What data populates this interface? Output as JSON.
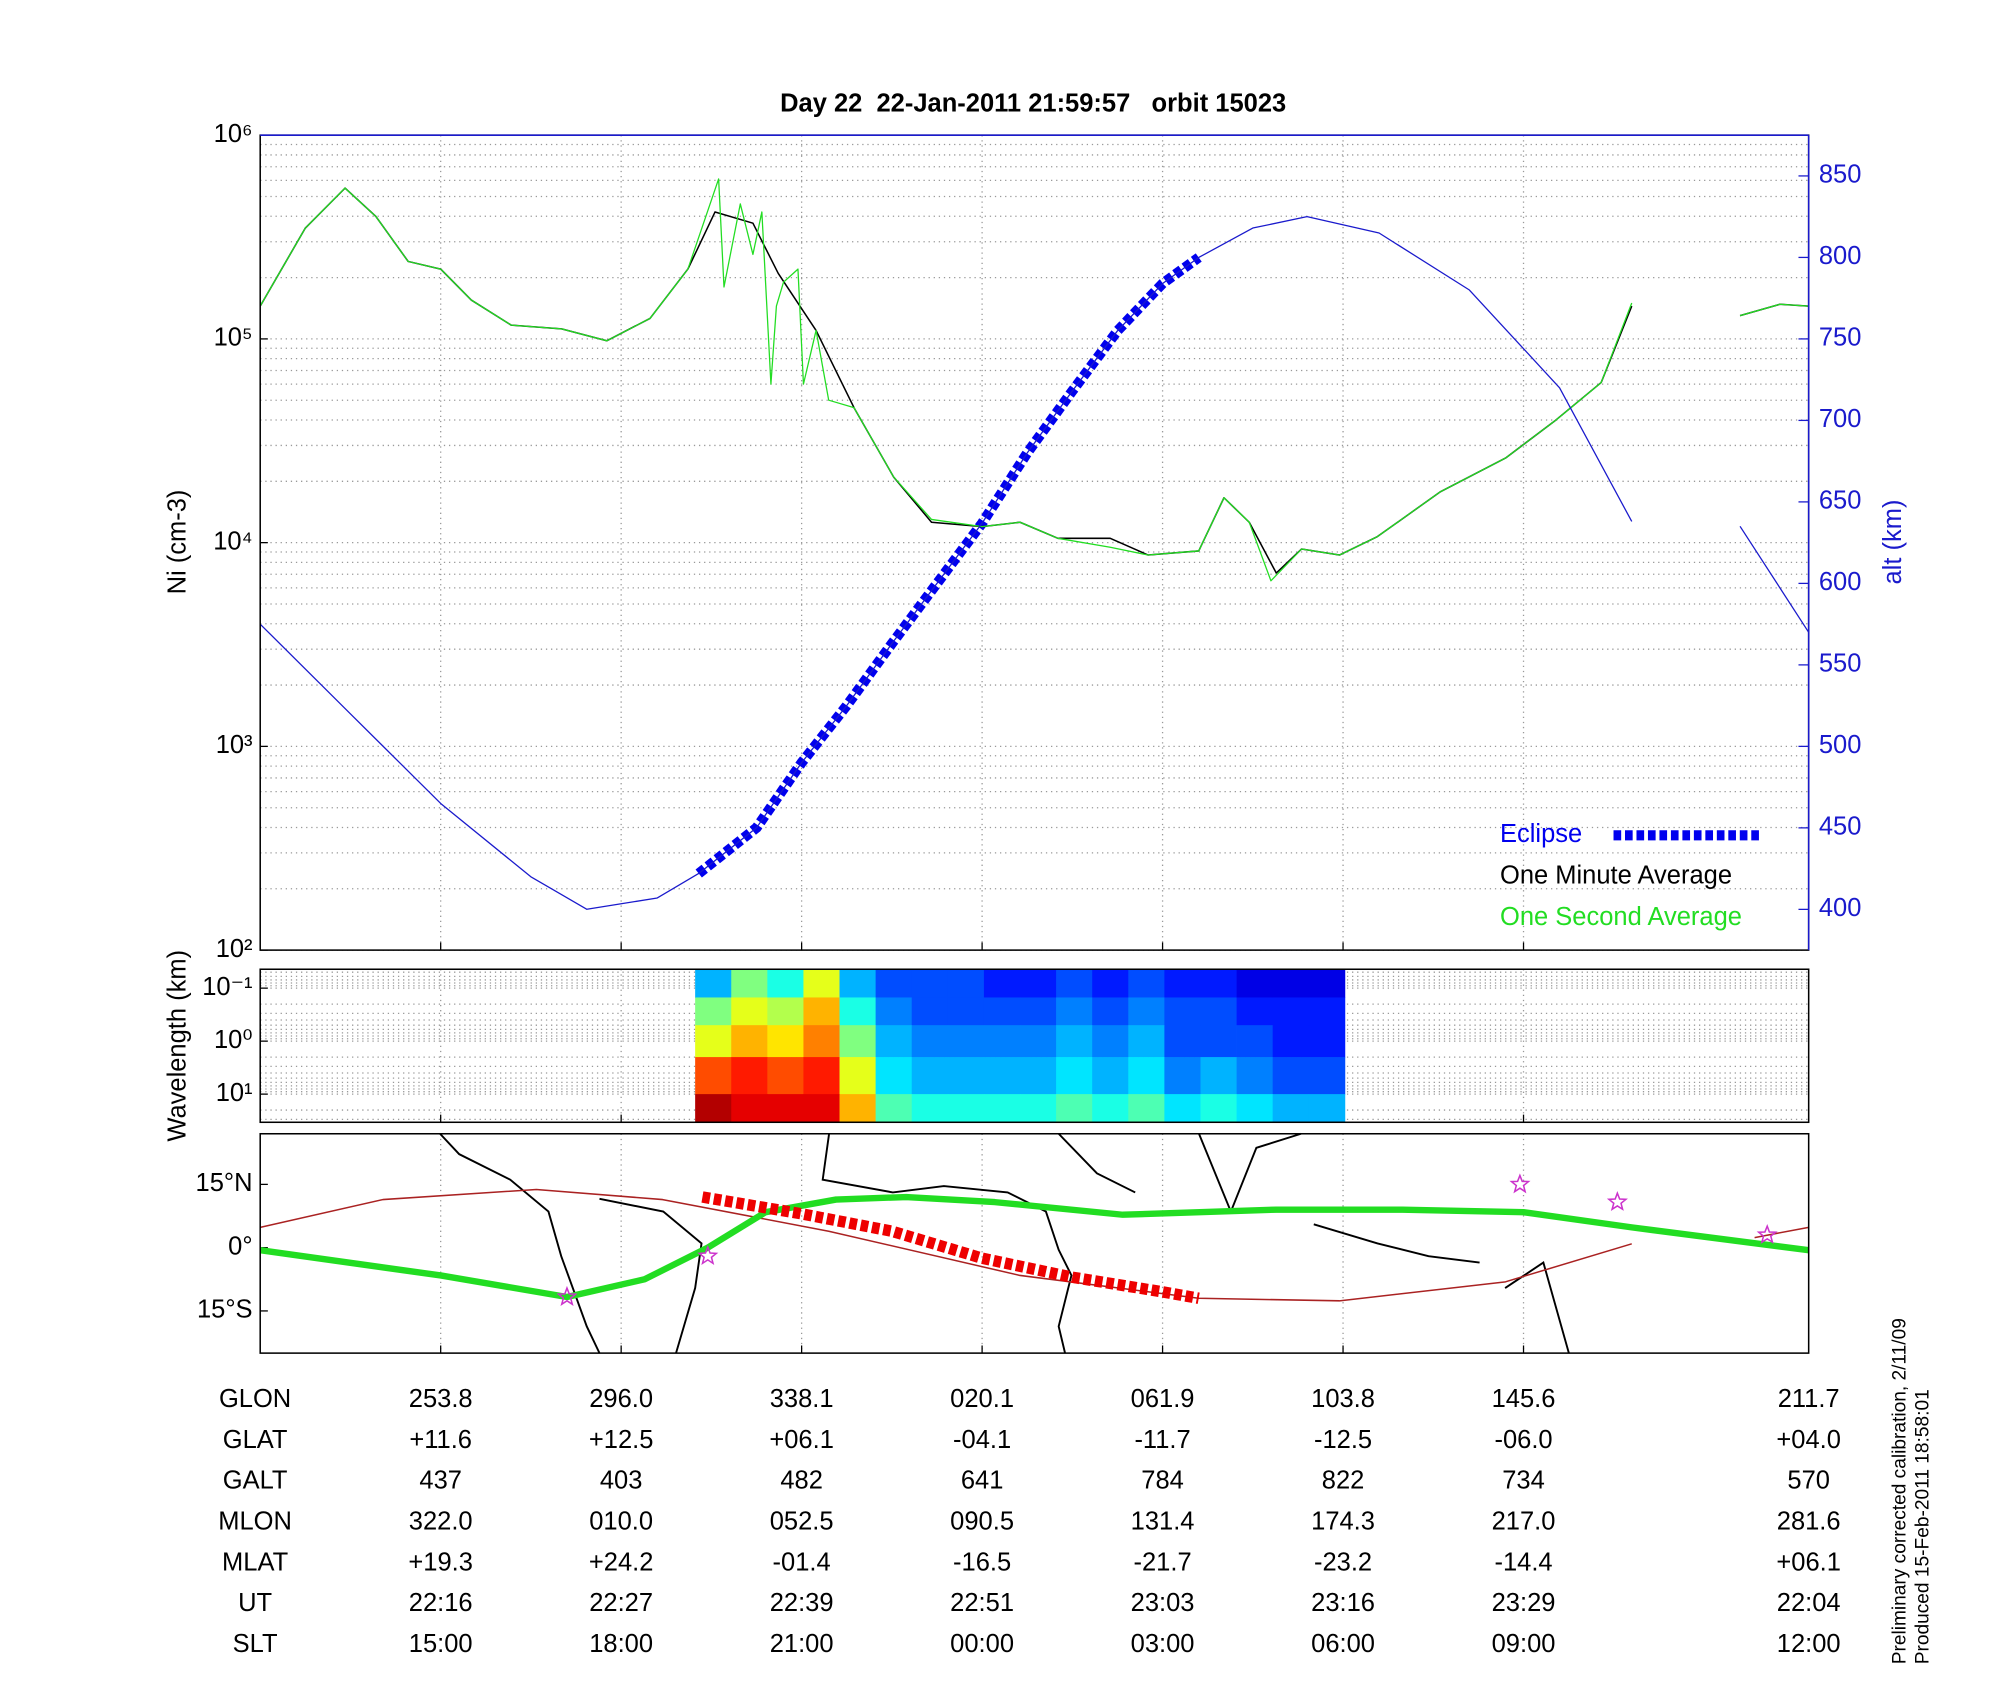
{
  "chart_data": [
    {
      "type": "line",
      "title": "Day 22  22-Jan-2011 21:59:57   orbit 15023",
      "ylabel": "Ni (cm-3)",
      "y2label": "alt (km)",
      "xlim": [
        0,
        8.58
      ],
      "xticks": [
        1,
        2,
        3,
        4,
        5,
        6,
        7
      ],
      "ylim": [
        100,
        1000000
      ],
      "ylog": true,
      "minor_grid": true,
      "grid": "both",
      "yticks": [
        {
          "value": 100,
          "label": "10²"
        },
        {
          "value": 1000,
          "label": "10³"
        },
        {
          "value": 10000,
          "label": "10⁴"
        },
        {
          "value": 100000,
          "label": "10⁵"
        },
        {
          "value": 1000000,
          "label": "10⁶"
        }
      ],
      "y2lim": [
        375,
        875
      ],
      "y2ticks": [
        400,
        450,
        500,
        550,
        600,
        650,
        700,
        750,
        800,
        850
      ],
      "y2color": "#1a1acc",
      "legend": "lower right",
      "series": [
        {
          "name": "Eclipse",
          "color": "#0000ee",
          "axis": "y2",
          "style": "dash",
          "width": 8,
          "x": [
            2.43,
            2.75,
            3,
            3.25,
            3.5,
            3.75,
            4,
            4.25,
            4.5,
            4.75,
            5,
            5.2
          ],
          "values": [
            422,
            450,
            490,
            525,
            563,
            600,
            637,
            680,
            718,
            755,
            784,
            800
          ]
        },
        {
          "name": "One Minute Average",
          "color": "#000000",
          "style": "line",
          "width": 1.2,
          "x": [
            0,
            0.25,
            0.47,
            0.64,
            0.82,
            1.0,
            1.17,
            1.39,
            1.67,
            1.92,
            2.16,
            2.37,
            2.52,
            2.73,
            2.87,
            3.08,
            3.29,
            3.51,
            3.72,
            4.0,
            4.21,
            4.42,
            4.71,
            4.92,
            5.2,
            5.34,
            5.48,
            5.63,
            5.77,
            5.98,
            6.19,
            6.54,
            6.9,
            7.18,
            7.43,
            7.6,
            null,
            8.2,
            8.42,
            8.58
          ],
          "values": [
            145000,
            350000,
            550000,
            400000,
            240000,
            220000,
            155000,
            117000,
            112000,
            98000,
            126000,
            220000,
            420000,
            370000,
            210000,
            110000,
            46000,
            21000,
            12600,
            12000,
            12600,
            10500,
            10500,
            8700,
            9100,
            16600,
            12600,
            7100,
            9300,
            8700,
            10700,
            17800,
            26000,
            40000,
            61000,
            145000,
            null,
            130000,
            148000,
            145000
          ]
        },
        {
          "name": "One Second Average",
          "color": "#22dd22",
          "style": "line",
          "width": 1,
          "x": [
            0,
            0.25,
            0.47,
            0.64,
            0.82,
            1.0,
            1.17,
            1.39,
            1.67,
            1.92,
            2.16,
            2.37,
            2.54,
            2.57,
            2.66,
            2.73,
            2.78,
            2.83,
            2.86,
            2.9,
            2.98,
            3.01,
            3.08,
            3.15,
            3.29,
            3.51,
            3.72,
            4.0,
            4.21,
            4.42,
            4.71,
            4.92,
            5.2,
            5.34,
            5.48,
            5.6,
            5.77,
            5.98,
            6.19,
            6.54,
            6.9,
            7.18,
            7.43,
            7.6,
            null,
            8.2,
            8.42,
            8.58
          ],
          "values": [
            145000,
            350000,
            550000,
            400000,
            240000,
            220000,
            155000,
            117000,
            112000,
            98000,
            126000,
            220000,
            610000,
            180000,
            460000,
            260000,
            420000,
            60000,
            145000,
            190000,
            220000,
            60000,
            110000,
            50000,
            46000,
            21000,
            13000,
            12000,
            12600,
            10500,
            9500,
            8700,
            9100,
            16600,
            12600,
            6500,
            9300,
            8700,
            10700,
            17800,
            26000,
            40000,
            61000,
            150000,
            null,
            130000,
            148000,
            145000
          ]
        },
        {
          "color": "#1a1acc",
          "axis": "y2",
          "style": "line",
          "width": 1,
          "x": [
            0,
            0.5,
            1,
            1.5,
            1.81,
            2.2,
            2.43,
            2.75,
            3,
            3.25,
            3.5,
            3.75,
            4,
            4.25,
            4.5,
            4.75,
            5,
            5.2,
            5.5,
            5.8,
            6.2,
            6.7,
            7.2,
            7.6,
            null,
            8.2,
            8.58
          ],
          "values": [
            575,
            520,
            465,
            420,
            400,
            407,
            422,
            450,
            490,
            525,
            563,
            600,
            637,
            680,
            718,
            755,
            784,
            800,
            818,
            825,
            815,
            780,
            720,
            638,
            null,
            635,
            570
          ]
        }
      ]
    },
    {
      "type": "heatmap",
      "ylabel": "Wavelength (km)",
      "xlim": [
        0,
        8.58
      ],
      "xticks": [
        1,
        2,
        3,
        4,
        5,
        6,
        7
      ],
      "ylim": [
        0.044,
        34
      ],
      "ylog": true,
      "yinvert": true,
      "minor_grid": true,
      "grid": "both",
      "colormap": "jet",
      "yticks": [
        {
          "value": 0.1,
          "label": "10⁻¹"
        },
        {
          "value": 1,
          "label": "10⁰"
        },
        {
          "value": 10,
          "label": "10¹"
        }
      ],
      "x": [
        2.41,
        2.61,
        2.81,
        3.01,
        3.21,
        3.41,
        3.61,
        3.81,
        4.01,
        4.21,
        4.41,
        4.61,
        4.81,
        5.01,
        5.21,
        5.41,
        5.61,
        5.81,
        6.01
      ],
      "y": [
        0.044,
        0.15,
        0.5,
        2,
        10,
        34
      ],
      "values": [
        [
          0.3,
          0.5,
          0.4,
          0.6,
          0.3,
          0.2,
          0.2,
          0.2,
          0.15,
          0.15,
          0.2,
          0.15,
          0.2,
          0.15,
          0.15,
          0.1,
          0.1,
          0.1
        ],
        [
          0.5,
          0.6,
          0.55,
          0.7,
          0.4,
          0.25,
          0.2,
          0.2,
          0.2,
          0.2,
          0.25,
          0.2,
          0.25,
          0.2,
          0.2,
          0.15,
          0.15,
          0.15
        ],
        [
          0.6,
          0.7,
          0.65,
          0.75,
          0.5,
          0.3,
          0.25,
          0.25,
          0.25,
          0.25,
          0.3,
          0.25,
          0.3,
          0.2,
          0.2,
          0.2,
          0.15,
          0.15
        ],
        [
          0.8,
          0.85,
          0.8,
          0.85,
          0.6,
          0.35,
          0.3,
          0.3,
          0.3,
          0.3,
          0.35,
          0.3,
          0.35,
          0.25,
          0.3,
          0.25,
          0.2,
          0.2
        ],
        [
          0.95,
          0.9,
          0.9,
          0.9,
          0.7,
          0.45,
          0.4,
          0.4,
          0.4,
          0.4,
          0.45,
          0.4,
          0.45,
          0.35,
          0.4,
          0.35,
          0.3,
          0.3
        ]
      ]
    },
    {
      "type": "map",
      "xlim": [
        0,
        8.58
      ],
      "xticks": [
        1,
        2,
        3,
        4,
        5,
        6,
        7
      ],
      "ylim": [
        -25,
        27
      ],
      "grid": "x",
      "yticks": [
        {
          "value": 15,
          "label": "15°N"
        },
        {
          "value": 0,
          "label": "0°"
        },
        {
          "value": -15,
          "label": "15°S"
        }
      ],
      "series": [
        {
          "color": "#aa2222",
          "style": "line",
          "width": 1.2,
          "x": [
            0,
            0.68,
            1.53,
            2.23,
            3.15,
            4.21,
            5.2,
            5.98,
            6.9,
            7.6,
            null,
            8.28,
            8.58
          ],
          "values": [
            4.8,
            11.4,
            13.8,
            11.4,
            3.9,
            -6.6,
            -12,
            -12.6,
            -8.1,
            0.9,
            null,
            2.4,
            4.8
          ]
        },
        {
          "color": "#22dd22",
          "style": "line",
          "width": 5,
          "x": [
            0,
            1,
            1.7,
            2.13,
            2.48,
            2.8,
            3.19,
            3.58,
            4.07,
            4.78,
            5.63,
            6.33,
            7.0,
            7.6,
            8.58
          ],
          "values": [
            -0.6,
            -6.6,
            -11.7,
            -7.5,
            0,
            8.4,
            11.4,
            12,
            10.8,
            7.8,
            9,
            9,
            8.4,
            4.8,
            -0.6
          ]
        },
        {
          "color": "#ee0000",
          "style": "dash",
          "width": 9,
          "x": [
            2.45,
            3,
            3.5,
            4,
            4.5,
            5,
            5.2
          ],
          "values": [
            12,
            8,
            3.9,
            -2.5,
            -7,
            -10.5,
            -12
          ]
        },
        {
          "color": "#cc33cc",
          "style": "markers",
          "x": [
            1.7,
            2.48,
            6.98,
            7.52,
            8.35
          ],
          "values": [
            -11.7,
            -2,
            15,
            10.8,
            3
          ]
        }
      ]
    }
  ],
  "table": {
    "rows": [
      [
        "GLON",
        "253.8",
        "296.0",
        "338.1",
        "020.1",
        "061.9",
        "103.8",
        "145.6",
        "211.7"
      ],
      [
        "GLAT",
        "+11.6",
        "+12.5",
        "+06.1",
        "-04.1",
        "-11.7",
        "-12.5",
        "-06.0",
        "+04.0"
      ],
      [
        "GALT",
        "437",
        "403",
        "482",
        "641",
        "784",
        "822",
        "734",
        "570"
      ],
      [
        "MLON",
        "322.0",
        "010.0",
        "052.5",
        "090.5",
        "131.4",
        "174.3",
        "217.0",
        "281.6"
      ],
      [
        "MLAT",
        "+19.3",
        "+24.2",
        "-01.4",
        "-16.5",
        "-21.7",
        "-23.2",
        "-14.4",
        "+06.1"
      ],
      [
        "UT",
        "22:16",
        "22:27",
        "22:39",
        "22:51",
        "23:03",
        "23:16",
        "23:29",
        "22:04"
      ],
      [
        "SLT",
        "15:00",
        "18:00",
        "21:00",
        "00:00",
        "03:00",
        "06:00",
        "09:00",
        "12:00"
      ]
    ]
  },
  "notes": [
    "Preliminary corrected calibration, 2/11/09",
    "Produced 15-Feb-2011 18:58:01"
  ]
}
